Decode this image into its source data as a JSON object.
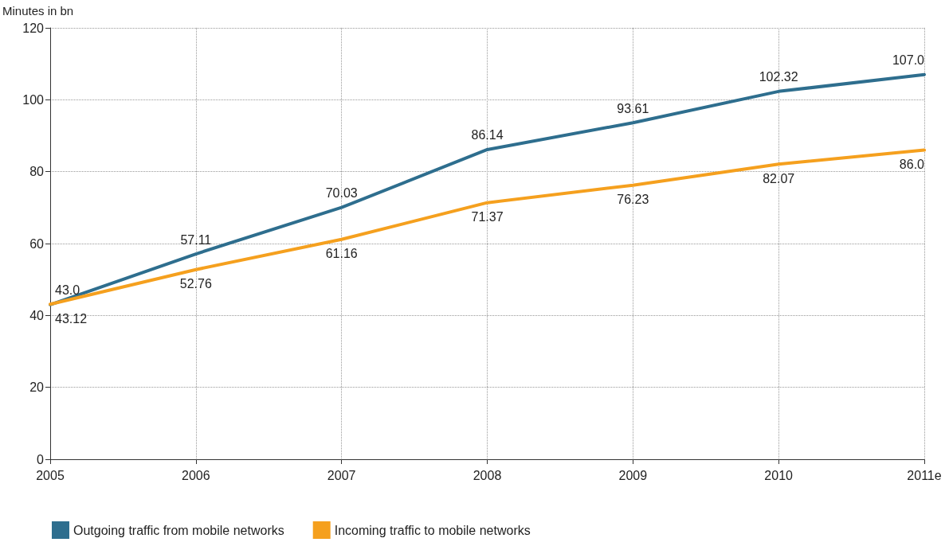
{
  "chart_data": {
    "type": "line",
    "ylabel": "Minutes in bn",
    "categories": [
      "2005",
      "2006",
      "2007",
      "2008",
      "2009",
      "2010",
      "2011e"
    ],
    "series": [
      {
        "name": "Outgoing traffic from mobile networks",
        "color": "#2e6e8e",
        "values": [
          43.0,
          57.11,
          70.03,
          86.14,
          93.61,
          102.32,
          107.0
        ],
        "value_labels": [
          "43.0",
          "57.11",
          "70.03",
          "86.14",
          "93.61",
          "102.32",
          "107.0"
        ]
      },
      {
        "name": "Incoming traffic to mobile networks",
        "color": "#f5a01e",
        "values": [
          43.12,
          52.76,
          61.16,
          71.37,
          76.23,
          82.07,
          86.0
        ],
        "value_labels": [
          "43.12",
          "52.76",
          "61.16",
          "71.37",
          "76.23",
          "82.07",
          "86.0"
        ]
      }
    ],
    "ylim": [
      0,
      120
    ],
    "yticks": [
      0,
      20,
      40,
      60,
      80,
      100,
      120
    ],
    "grid": true,
    "legend": "bottom left",
    "marker": "none",
    "line_style": "solid"
  }
}
